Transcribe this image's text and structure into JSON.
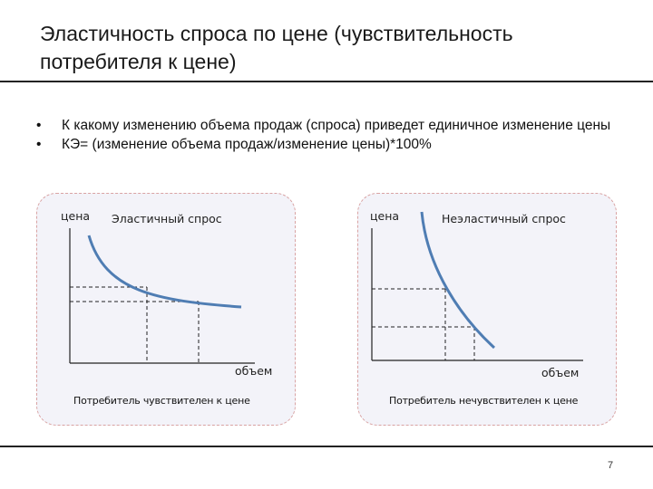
{
  "title": "Эластичность спроса по цене (чувствительность потребителя к цене)",
  "bullets": [
    {
      "marker": "•",
      "text": "К какому изменению объема продаж (спроса) приведет единичное изменение цены"
    },
    {
      "marker": "•",
      "text": "КЭ= (изменение объема продаж/изменение цены)*100%"
    }
  ],
  "panels": {
    "left": {
      "y_label": "цена",
      "x_label": "объем",
      "curve_label": "Эластичный спрос",
      "caption": "Потребитель чувствителен к цене"
    },
    "right": {
      "y_label": "цена",
      "x_label": "объем",
      "curve_label": "Неэластичный спрос",
      "caption": "Потребитель нечувствителен к цене"
    }
  },
  "colors": {
    "curve": "#4f7db3",
    "panel_background": "#f3f3f9",
    "panel_border": "#d9a3a3",
    "dashed_line": "#222222"
  },
  "page_number": "7"
}
